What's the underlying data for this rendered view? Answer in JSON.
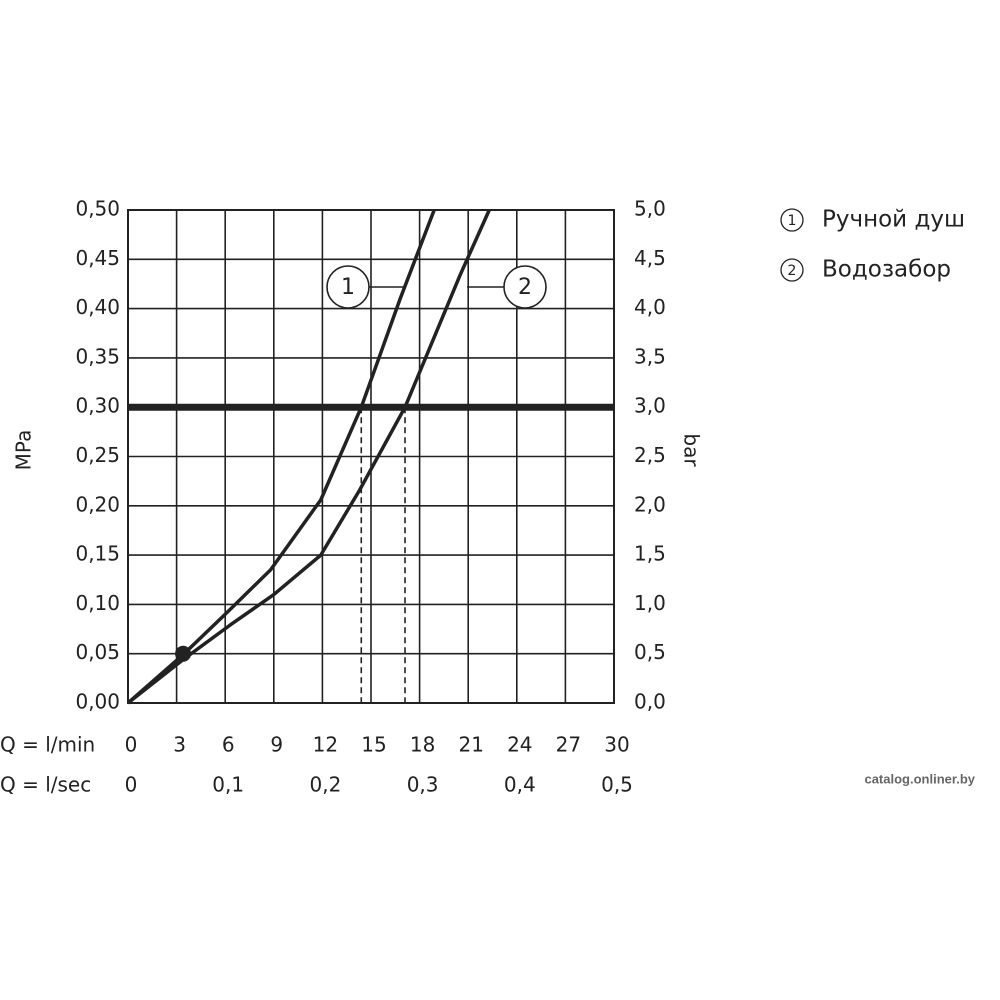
{
  "chart_data": {
    "type": "line",
    "y_label": "MPa",
    "y2_label": "bar",
    "x_label": "Q = l/min",
    "x2_label": "Q = l/sec",
    "xlim": [
      0,
      30
    ],
    "xticks": [
      0,
      3,
      6,
      9,
      12,
      15,
      18,
      21,
      24,
      27,
      30
    ],
    "x2lim": [
      0,
      0.5
    ],
    "x2ticks": [
      0,
      {
        "value": 0.1,
        "label": "0,1"
      },
      {
        "value": 0.2,
        "label": "0,2"
      },
      {
        "value": 0.3,
        "label": "0,3"
      },
      {
        "value": 0.4,
        "label": "0,4"
      },
      {
        "value": 0.5,
        "label": "0,5"
      }
    ],
    "ylim": [
      0,
      0.5
    ],
    "yticks": [
      {
        "value": 0,
        "label": "0,00"
      },
      {
        "value": 0.05,
        "label": "0,05"
      },
      {
        "value": 0.1,
        "label": "0,10"
      },
      {
        "value": 0.15,
        "label": "0,15"
      },
      {
        "value": 0.2,
        "label": "0,20"
      },
      {
        "value": 0.25,
        "label": "0,25"
      },
      {
        "value": 0.3,
        "label": "0,30"
      },
      {
        "value": 0.35,
        "label": "0,35"
      },
      {
        "value": 0.4,
        "label": "0,40"
      },
      {
        "value": 0.45,
        "label": "0,45"
      },
      {
        "value": 0.5,
        "label": "0,50"
      }
    ],
    "y2lim": [
      0,
      5
    ],
    "y2ticks": [
      {
        "value": 0,
        "label": "0,0"
      },
      {
        "value": 0.5,
        "label": "0,5"
      },
      {
        "value": 1,
        "label": "1,0"
      },
      {
        "value": 1.5,
        "label": "1,5"
      },
      {
        "value": 2,
        "label": "2,0"
      },
      {
        "value": 2.5,
        "label": "2,5"
      },
      {
        "value": 3,
        "label": "3,0"
      },
      {
        "value": 3.5,
        "label": "3,5"
      },
      {
        "value": 4,
        "label": "4,0"
      },
      {
        "value": 4.5,
        "label": "4,5"
      },
      {
        "value": 5,
        "label": "5,0"
      }
    ],
    "grid": true,
    "reference_line": 0.3,
    "point": {
      "x": 3.4,
      "y": 0.05
    },
    "series": [
      {
        "name": "Ручной душ",
        "label": "1",
        "color": "#222222",
        "x": [
          0,
          3.4,
          6,
          8.8,
          11.9,
          14.4,
          16.8,
          18.9
        ],
        "values": [
          0,
          0.049,
          0.09,
          0.135,
          0.206,
          0.3,
          0.41,
          0.5
        ]
      },
      {
        "name": "Водозабор",
        "label": "2",
        "color": "#222222",
        "x": [
          0,
          3.4,
          6.3,
          9,
          11.9,
          14.3,
          17.1,
          20.5,
          22.3
        ],
        "values": [
          0,
          0.044,
          0.079,
          0.11,
          0.15,
          0.216,
          0.3,
          0.434,
          0.5
        ]
      }
    ],
    "watermark": "catalog.onliner.by"
  }
}
